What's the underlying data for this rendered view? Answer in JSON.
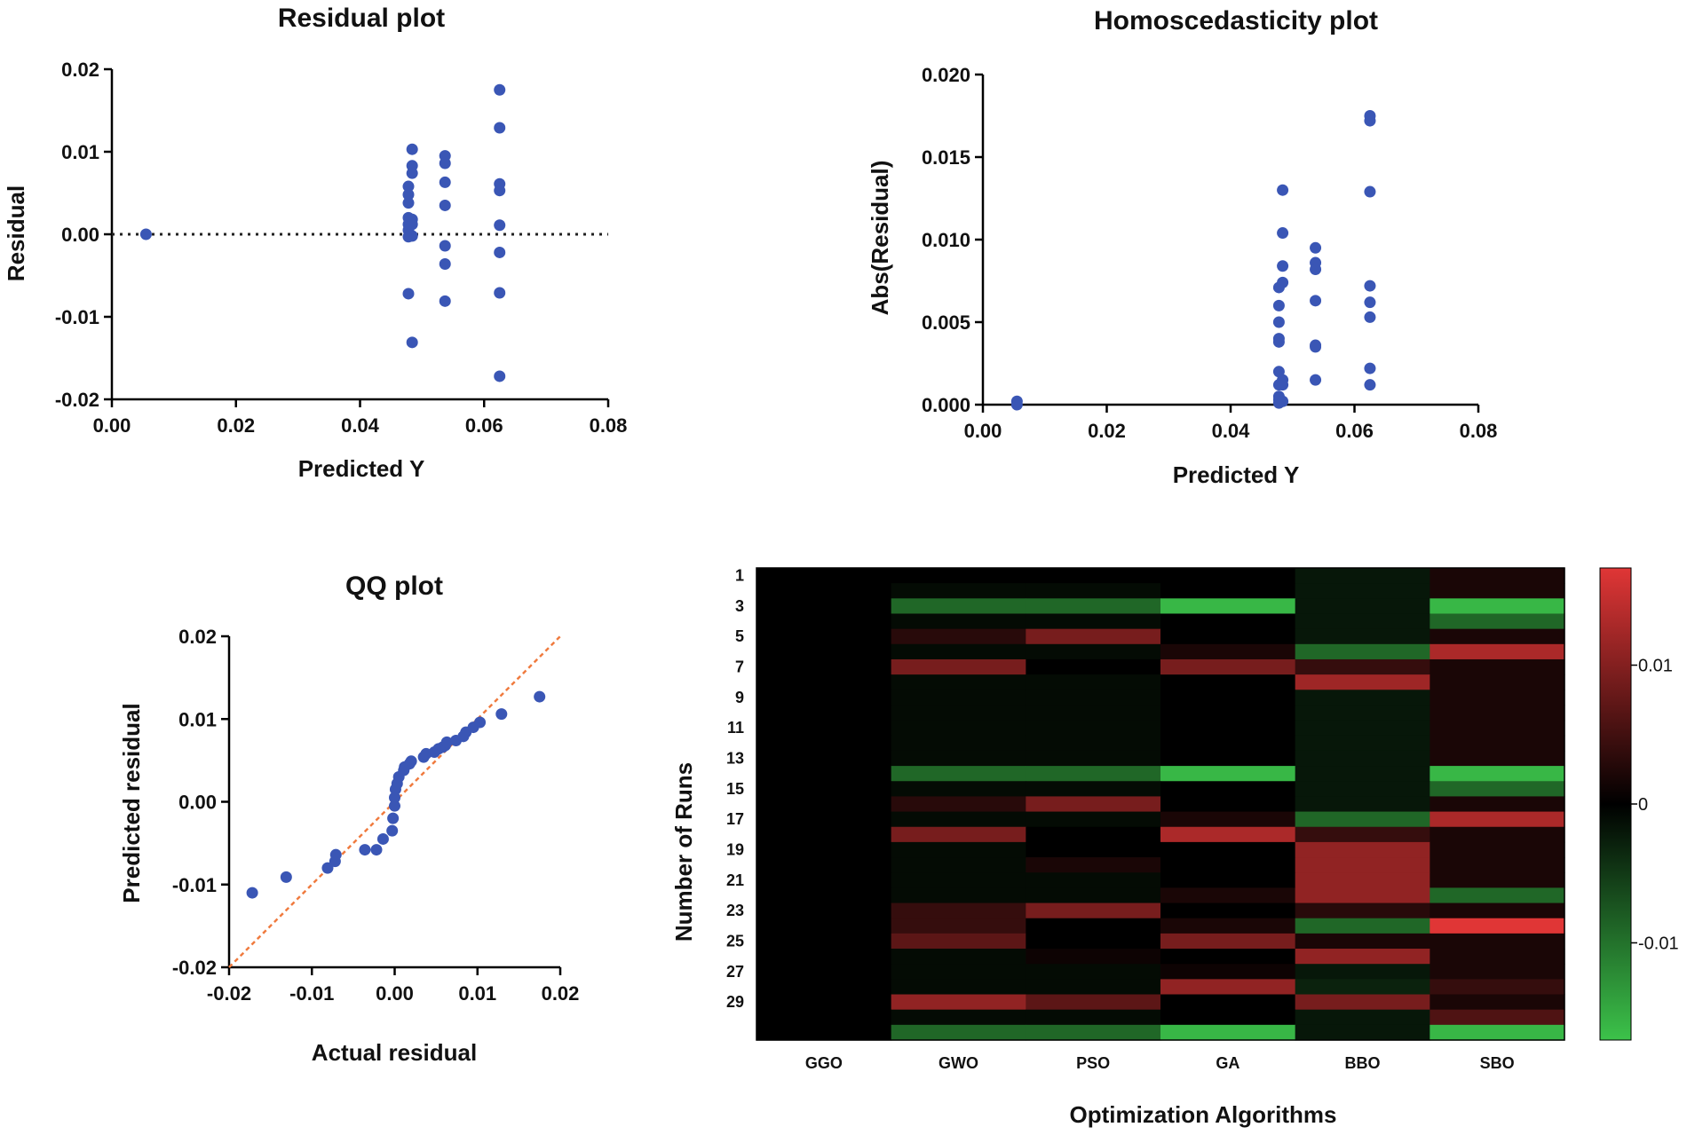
{
  "colors": {
    "point": "#3a56b5",
    "axis": "#000000",
    "ref_line": "#f07b3f",
    "heat_neg": "#3cc24a",
    "heat_zero": "#000000",
    "heat_pos": "#e03636"
  },
  "chart_data": [
    {
      "id": "residual",
      "type": "scatter",
      "title": "Residual plot",
      "xlabel": "Predicted Y",
      "ylabel": "Residual",
      "xlim": [
        0.0,
        0.08
      ],
      "ylim": [
        -0.02,
        0.02
      ],
      "xticks": [
        "0.00",
        "0.02",
        "0.04",
        "0.06",
        "0.08"
      ],
      "yticks": [
        "-0.02",
        "-0.01",
        "0.00",
        "0.01",
        "0.02"
      ],
      "reference_line": "y = 0 (dotted)",
      "points": [
        [
          0.0055,
          0.0
        ],
        [
          0.0478,
          0.0058
        ],
        [
          0.0478,
          0.0048
        ],
        [
          0.0478,
          0.0038
        ],
        [
          0.0478,
          0.002
        ],
        [
          0.0478,
          0.0012
        ],
        [
          0.0478,
          0.0005
        ],
        [
          0.0478,
          -0.0003
        ],
        [
          0.0478,
          -0.0072
        ],
        [
          0.0484,
          0.0103
        ],
        [
          0.0484,
          0.0083
        ],
        [
          0.0484,
          0.0074
        ],
        [
          0.0484,
          0.0018
        ],
        [
          0.0484,
          0.0012
        ],
        [
          0.0484,
          -0.0002
        ],
        [
          0.0484,
          -0.0131
        ],
        [
          0.0537,
          0.0095
        ],
        [
          0.0537,
          0.0086
        ],
        [
          0.0537,
          0.0063
        ],
        [
          0.0537,
          0.0035
        ],
        [
          0.0537,
          -0.0014
        ],
        [
          0.0537,
          -0.0036
        ],
        [
          0.0537,
          -0.0081
        ],
        [
          0.0625,
          0.0175
        ],
        [
          0.0625,
          0.0129
        ],
        [
          0.0625,
          0.0061
        ],
        [
          0.0625,
          0.0053
        ],
        [
          0.0625,
          0.0011
        ],
        [
          0.0625,
          -0.0022
        ],
        [
          0.0625,
          -0.0071
        ],
        [
          0.0625,
          -0.0172
        ]
      ]
    },
    {
      "id": "homoscedasticity",
      "type": "scatter",
      "title": "Homoscedasticity plot",
      "xlabel": "Predicted Y",
      "ylabel": "Abs(Residual)",
      "xlim": [
        0.0,
        0.08
      ],
      "ylim": [
        0.0,
        0.02
      ],
      "xticks": [
        "0.00",
        "0.02",
        "0.04",
        "0.06",
        "0.08"
      ],
      "yticks": [
        "0.000",
        "0.005",
        "0.010",
        "0.015",
        "0.020"
      ],
      "points": [
        [
          0.0055,
          0.0
        ],
        [
          0.0055,
          0.0002
        ],
        [
          0.0478,
          0.0071
        ],
        [
          0.0478,
          0.006
        ],
        [
          0.0478,
          0.005
        ],
        [
          0.0478,
          0.004
        ],
        [
          0.0478,
          0.0038
        ],
        [
          0.0478,
          0.002
        ],
        [
          0.0478,
          0.0012
        ],
        [
          0.0478,
          0.0005
        ],
        [
          0.0478,
          0.0003
        ],
        [
          0.0478,
          0.0001
        ],
        [
          0.0484,
          0.013
        ],
        [
          0.0484,
          0.0104
        ],
        [
          0.0484,
          0.0084
        ],
        [
          0.0484,
          0.0074
        ],
        [
          0.0484,
          0.0015
        ],
        [
          0.0484,
          0.0012
        ],
        [
          0.0484,
          0.0002
        ],
        [
          0.0537,
          0.0095
        ],
        [
          0.0537,
          0.0086
        ],
        [
          0.0537,
          0.0082
        ],
        [
          0.0537,
          0.0063
        ],
        [
          0.0537,
          0.0036
        ],
        [
          0.0537,
          0.0035
        ],
        [
          0.0537,
          0.0015
        ],
        [
          0.0625,
          0.0175
        ],
        [
          0.0625,
          0.0172
        ],
        [
          0.0625,
          0.0129
        ],
        [
          0.0625,
          0.0072
        ],
        [
          0.0625,
          0.0062
        ],
        [
          0.0625,
          0.0053
        ],
        [
          0.0625,
          0.0022
        ],
        [
          0.0625,
          0.0012
        ]
      ]
    },
    {
      "id": "qq",
      "type": "scatter",
      "title": "QQ plot",
      "xlabel": "Actual residual",
      "ylabel": "Predicted residual",
      "xlim": [
        -0.02,
        0.02
      ],
      "ylim": [
        -0.02,
        0.02
      ],
      "xticks": [
        "-0.02",
        "-0.01",
        "0.00",
        "0.01",
        "0.02"
      ],
      "yticks": [
        "-0.02",
        "-0.01",
        "0.00",
        "0.01",
        "0.02"
      ],
      "reference_line": "y = x (dashed)",
      "points": [
        [
          -0.0172,
          -0.011
        ],
        [
          -0.0131,
          -0.0091
        ],
        [
          -0.0081,
          -0.008
        ],
        [
          -0.0072,
          -0.0072
        ],
        [
          -0.0071,
          -0.0064
        ],
        [
          -0.0036,
          -0.0058
        ],
        [
          -0.0022,
          -0.0058
        ],
        [
          -0.0014,
          -0.0045
        ],
        [
          -0.0003,
          -0.0035
        ],
        [
          -0.0002,
          -0.002
        ],
        [
          0.0,
          -0.0005
        ],
        [
          0.0,
          0.0005
        ],
        [
          0.0001,
          0.0015
        ],
        [
          0.0003,
          0.0022
        ],
        [
          0.0005,
          0.003
        ],
        [
          0.0011,
          0.0038
        ],
        [
          0.0012,
          0.0042
        ],
        [
          0.0018,
          0.0046
        ],
        [
          0.002,
          0.0049
        ],
        [
          0.0035,
          0.0054
        ],
        [
          0.0038,
          0.0058
        ],
        [
          0.0048,
          0.006
        ],
        [
          0.0053,
          0.0064
        ],
        [
          0.0058,
          0.0066
        ],
        [
          0.0061,
          0.0068
        ],
        [
          0.0063,
          0.0072
        ],
        [
          0.0074,
          0.0074
        ],
        [
          0.0083,
          0.0079
        ],
        [
          0.0086,
          0.0084
        ],
        [
          0.0095,
          0.009
        ],
        [
          0.0103,
          0.0096
        ],
        [
          0.0129,
          0.0106
        ],
        [
          0.0175,
          0.0127
        ]
      ]
    },
    {
      "id": "heatmap",
      "type": "heatmap",
      "xlabel": "Optimization Algorithms",
      "ylabel": "Number of Runs",
      "columns": [
        "GGO",
        "GWO",
        "PSO",
        "GA",
        "BBO",
        "SBO"
      ],
      "row_tick_labels": [
        "1",
        "3",
        "5",
        "7",
        "9",
        "11",
        "13",
        "15",
        "17",
        "19",
        "21",
        "23",
        "25",
        "27",
        "29"
      ],
      "colorbar": {
        "min": -0.017,
        "max": 0.017,
        "ticks": [
          "0.01",
          "0",
          "-0.01"
        ]
      },
      "values": [
        [
          0,
          0,
          0,
          0,
          -0.002,
          0.002
        ],
        [
          0,
          -0.001,
          -0.001,
          0,
          -0.002,
          0.002
        ],
        [
          0,
          -0.009,
          -0.009,
          -0.016,
          -0.002,
          -0.016
        ],
        [
          0,
          -0.001,
          -0.001,
          0,
          -0.002,
          -0.009
        ],
        [
          0,
          0.003,
          0.009,
          0,
          -0.002,
          0.002
        ],
        [
          0,
          -0.001,
          -0.001,
          0.002,
          -0.009,
          0.013
        ],
        [
          0,
          0.009,
          0,
          0.009,
          0.004,
          0.002
        ],
        [
          0,
          -0.001,
          -0.001,
          0,
          0.012,
          0.002
        ],
        [
          0,
          -0.001,
          -0.001,
          0,
          -0.002,
          0.002
        ],
        [
          0,
          -0.001,
          -0.001,
          0,
          -0.002,
          0.002
        ],
        [
          0,
          -0.001,
          -0.001,
          0,
          -0.002,
          0.002
        ],
        [
          0,
          -0.001,
          -0.001,
          0,
          -0.002,
          0.002
        ],
        [
          0,
          -0.001,
          -0.001,
          0,
          -0.002,
          0.002
        ],
        [
          0,
          -0.009,
          -0.009,
          -0.016,
          -0.002,
          -0.016
        ],
        [
          0,
          -0.001,
          -0.001,
          0,
          -0.002,
          -0.009
        ],
        [
          0,
          0.003,
          0.009,
          0,
          -0.002,
          0.002
        ],
        [
          0,
          -0.001,
          -0.001,
          0.002,
          -0.009,
          0.013
        ],
        [
          0,
          0.009,
          0,
          0.013,
          0.004,
          0.002
        ],
        [
          0,
          -0.001,
          0,
          0,
          0.011,
          0.002
        ],
        [
          0,
          -0.001,
          0.002,
          0,
          0.011,
          0.002
        ],
        [
          0,
          -0.001,
          -0.001,
          0,
          0.011,
          0.002
        ],
        [
          0,
          -0.001,
          -0.001,
          0.002,
          0.011,
          -0.009
        ],
        [
          0,
          0.004,
          0.009,
          0,
          0.003,
          0.002
        ],
        [
          0,
          0.004,
          0,
          0.002,
          -0.009,
          0.017
        ],
        [
          0,
          0.007,
          0,
          0.009,
          0.002,
          0.002
        ],
        [
          0,
          -0.001,
          0.001,
          0,
          0.011,
          0.002
        ],
        [
          0,
          -0.001,
          -0.001,
          0.001,
          -0.002,
          0.002
        ],
        [
          0,
          -0.001,
          -0.001,
          0.011,
          -0.003,
          0.004
        ],
        [
          0,
          0.011,
          0.007,
          0,
          0.009,
          0.002
        ],
        [
          0,
          -0.001,
          -0.001,
          0,
          -0.002,
          0.006
        ],
        [
          0,
          -0.009,
          -0.009,
          -0.016,
          -0.002,
          -0.016
        ]
      ]
    }
  ]
}
